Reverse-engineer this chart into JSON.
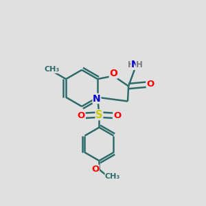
{
  "background_color": "#e0e0e0",
  "bond_color": "#2d6b6b",
  "bond_width": 1.8,
  "atom_colors": {
    "O": "#ff0000",
    "N": "#0000cc",
    "S": "#cccc00",
    "C": "#2d6b6b",
    "H": "#7a7a7a"
  },
  "font_size": 9.5,
  "inner_sep": 0.016
}
